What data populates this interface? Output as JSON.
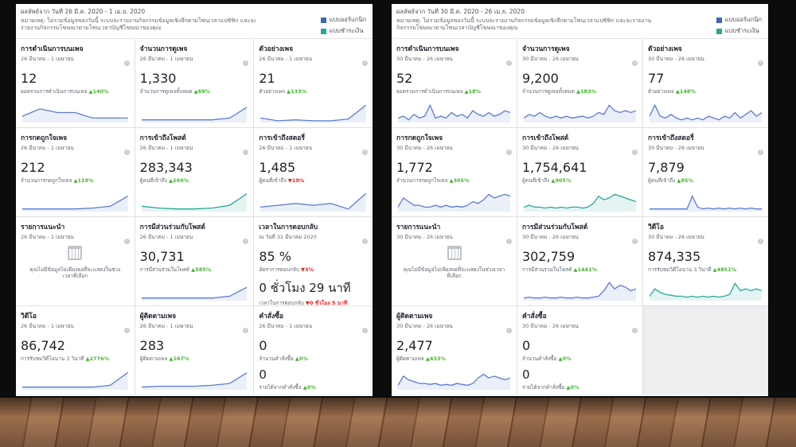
{
  "colors": {
    "organic": "#4267b2",
    "paid": "#2aa59a",
    "up": "#42b72a",
    "down": "#e02424",
    "line_blue": "#5b7bd5",
    "line_teal": "#2aa59a"
  },
  "legend": {
    "organic": "แบบออร์แกนิก",
    "paid": "แบบชำระเงิน"
  },
  "left": {
    "date_range": "ผลลัพธ์จาก วันที่ 26 มี.ค. 2020 - 1 เม.ย. 2020",
    "note": "หมายเหตุ: ไม่รวมข้อมูลของวันนี้ ระบบจะรายงานกิจกรรมข้อมูลเชิงลึกตามโซนเวลาแปซิฟิก และจะรายงานกิจกรรมโฆษณาตามโซนเวลาบัญชีโฆษณาของคุณ",
    "cards": [
      {
        "title": "การดำเนินการบนเพจ",
        "sub": "26 มีนาคม - 1 เมษายน",
        "value": "12",
        "meta": "ยอดรวมการดำเนินการบนเพจ",
        "change": "140%",
        "dir": "up",
        "line": "blue",
        "points": [
          0.3,
          0.7,
          0.5,
          0.5,
          0.2,
          0.2,
          0.2
        ]
      },
      {
        "title": "จำนวนการดูเพจ",
        "sub": "26 มีนาคม - 1 เมษายน",
        "value": "1,330",
        "meta": "จำนวนการดูเพจทั้งหมด",
        "change": "69%",
        "dir": "up",
        "line": "blue",
        "points": [
          0.1,
          0.1,
          0.1,
          0.1,
          0.1,
          0.2,
          0.8
        ]
      },
      {
        "title": "ตัวอย่างเพจ",
        "sub": "26 มีนาคม - 1 เมษายน",
        "value": "21",
        "meta": "ตัวอย่างเพจ",
        "change": "133%",
        "dir": "up",
        "line": "blue",
        "points": [
          0.2,
          0.05,
          0.1,
          0.05,
          0.05,
          0.15,
          0.9
        ]
      },
      {
        "title": "การกดถูกใจเพจ",
        "sub": "26 มีนาคม - 1 เมษายน",
        "value": "212",
        "meta": "จำนวนการกดถูกใจเพจ",
        "change": "119%",
        "dir": "up",
        "line": "blue",
        "points": [
          0.1,
          0.1,
          0.1,
          0.1,
          0.15,
          0.25,
          0.8
        ]
      },
      {
        "title": "การเข้าถึงโพสต์",
        "sub": "26 มีนาคม - 1 เมษายน",
        "value": "283,343",
        "meta": "ผู้คนที่เข้าถึง",
        "change": "269%",
        "dir": "up",
        "line": "teal",
        "points": [
          0.25,
          0.15,
          0.1,
          0.1,
          0.15,
          0.3,
          0.95
        ]
      },
      {
        "title": "การเข้าถึงสตอรี่",
        "sub": "26 มีนาคม - 1 เมษายน",
        "value": "1,485",
        "meta": "ผู้คนที่เข้าถึง",
        "change": "19%",
        "dir": "down",
        "line": "blue",
        "points": [
          0.2,
          0.3,
          0.4,
          0.3,
          0.4,
          0.1,
          0.95
        ]
      },
      {
        "title": "รายการแนะนำ",
        "sub": "26 มีนาคม - 1 เมษายน",
        "empty": "คุณไม่มีข้อมูลไม่เพียงพอที่จะแสดงในช่วงเวลาที่เลือก"
      },
      {
        "title": "การมีส่วนร่วมกับโพสต์",
        "sub": "26 มีนาคม - 1 เมษายน",
        "value": "30,731",
        "meta": "การมีส่วนร่วมในโพสต์",
        "change": "585%",
        "dir": "up",
        "line": "blue",
        "points": [
          0.1,
          0.1,
          0.1,
          0.1,
          0.1,
          0.2,
          0.7
        ]
      },
      {
        "title": "เวลาในการตอบกลับ",
        "sub": "ณ วันที่ 31 มีนาคม 2020",
        "value": "85 %",
        "meta": "อัตราการตอบกลับ",
        "change": "3%",
        "dir": "down",
        "value2": "0 ชั่วโมง 29 นาที",
        "meta2": "เวลาในการตอบกลับ",
        "change2": "0 ชั่วโมง 5 นาที",
        "dir2": "down"
      },
      {
        "title": "วิดีโอ",
        "sub": "26 มีนาคม - 1 เมษายน",
        "value": "86,742",
        "meta": "การรับชมวิดีโอนาน 3 วินาที",
        "change": "2776%",
        "dir": "up",
        "line": "blue",
        "points": [
          0.1,
          0.1,
          0.1,
          0.1,
          0.1,
          0.2,
          0.9
        ]
      },
      {
        "title": "ผู้ติดตามเพจ",
        "sub": "26 มีนาคม - 1 เมษายน",
        "value": "283",
        "meta": "ผู้ติดตามเพจ",
        "change": "167%",
        "dir": "up",
        "line": "blue",
        "points": [
          0.1,
          0.15,
          0.15,
          0.15,
          0.2,
          0.3,
          0.9
        ]
      },
      {
        "title": "คำสั่งซื้อ",
        "sub": "26 มีนาคม - 1 เมษายน",
        "value": "0",
        "meta": "จำนวนคำสั่งซื้อ",
        "change": "0%",
        "dir": "up",
        "value2": "0",
        "meta2": "รายได้จากคำสั่งซื้อ",
        "change2": "0%",
        "dir2": "up"
      }
    ]
  },
  "right": {
    "date_range": "ผลลัพธ์จาก วันที่ 30 มี.ค. 2020 - 26 เม.ย. 2020",
    "note": "หมายเหตุ: ไม่รวมข้อมูลของวันนี้ ระบบจะรายงานกิจกรรมข้อมูลเชิงลึกตามโซนเวลาแปซิฟิก และจะรายงานกิจกรรมโฆษณาตามโซนเวลาบัญชีโฆษณาของคุณ",
    "cards": [
      {
        "title": "การดำเนินการบนเพจ",
        "sub": "30 มีนาคม - 26 เมษายน",
        "value": "52",
        "meta": "ยอดรวมการดำเนินการบนเพจ",
        "change": "18%",
        "dir": "up",
        "line": "blue",
        "points": [
          0.2,
          0.3,
          0.1,
          0.4,
          0.2,
          0.3,
          0.9,
          0.2,
          0.3,
          0.2,
          0.5,
          0.3,
          0.4,
          0.2,
          0.6,
          0.4,
          0.3,
          0.5,
          0.3,
          0.4,
          0.6,
          0.5
        ]
      },
      {
        "title": "จำนวนการดูเพจ",
        "sub": "30 มีนาคม - 26 เมษายน",
        "value": "9,200",
        "meta": "จำนวนการดูเพจทั้งหมด",
        "change": "183%",
        "dir": "up",
        "line": "blue",
        "points": [
          0.2,
          0.4,
          0.3,
          0.5,
          0.3,
          0.2,
          0.3,
          0.2,
          0.3,
          0.2,
          0.25,
          0.3,
          0.2,
          0.3,
          0.5,
          0.4,
          0.9,
          0.6,
          0.5,
          0.6,
          0.5,
          0.6
        ]
      },
      {
        "title": "ตัวอย่างเพจ",
        "sub": "30 มีนาคม - 26 เมษายน",
        "value": "77",
        "meta": "ตัวอย่างเพจ",
        "change": "148%",
        "dir": "up",
        "line": "blue",
        "points": [
          0.3,
          0.9,
          0.3,
          0.2,
          0.4,
          0.2,
          0.1,
          0.2,
          0.1,
          0.2,
          0.1,
          0.3,
          0.2,
          0.1,
          0.3,
          0.2,
          0.5,
          0.2,
          0.4,
          0.6,
          0.3,
          0.5
        ]
      },
      {
        "title": "การกดถูกใจเพจ",
        "sub": "30 มีนาคม - 26 เมษายน",
        "value": "1,772",
        "meta": "จำนวนการกดถูกใจเพจ",
        "change": "305%",
        "dir": "up",
        "line": "blue",
        "points": [
          0.2,
          0.7,
          0.5,
          0.3,
          0.3,
          0.2,
          0.2,
          0.3,
          0.2,
          0.3,
          0.2,
          0.25,
          0.2,
          0.3,
          0.5,
          0.4,
          0.6,
          0.9,
          0.7,
          0.8,
          0.9,
          0.8
        ]
      },
      {
        "title": "การเข้าถึงโพสต์",
        "sub": "30 มีนาคม - 26 เมษายน",
        "value": "1,754,641",
        "meta": "ผู้คนที่เข้าถึง",
        "change": "905%",
        "dir": "up",
        "line": "teal",
        "points": [
          0.2,
          0.3,
          0.2,
          0.2,
          0.15,
          0.2,
          0.15,
          0.2,
          0.15,
          0.2,
          0.2,
          0.15,
          0.2,
          0.4,
          0.8,
          0.6,
          0.7,
          0.9,
          0.8,
          0.7,
          0.6,
          0.5
        ]
      },
      {
        "title": "การเข้าถึงสตอรี่",
        "sub": "30 มีนาคม - 26 เมษายน",
        "value": "7,879",
        "meta": "ผู้คนที่เข้าถึง",
        "change": "85%",
        "dir": "up",
        "line": "blue",
        "points": [
          0.1,
          0.1,
          0.1,
          0.1,
          0.1,
          0.1,
          0.1,
          0.1,
          0.8,
          0.2,
          0.1,
          0.15,
          0.1,
          0.15,
          0.1,
          0.15,
          0.1,
          0.15,
          0.1,
          0.15,
          0.1,
          0.1
        ]
      },
      {
        "title": "รายการแนะนำ",
        "sub": "30 มีนาคม - 26 เมษายน",
        "empty": "คุณไม่มีข้อมูลไม่เพียงพอที่จะแสดงในช่วงเวลาที่เลือก"
      },
      {
        "title": "การมีส่วนร่วมกับโพสต์",
        "sub": "30 มีนาคม - 26 เมษายน",
        "value": "302,759",
        "meta": "การมีส่วนร่วมในโพสต์",
        "change": "1441%",
        "dir": "up",
        "line": "blue",
        "points": [
          0.1,
          0.15,
          0.1,
          0.1,
          0.15,
          0.1,
          0.1,
          0.15,
          0.1,
          0.1,
          0.15,
          0.1,
          0.1,
          0.15,
          0.2,
          0.5,
          0.95,
          0.6,
          0.8,
          0.7,
          0.5,
          0.6
        ]
      },
      {
        "title": "วิดีโอ",
        "sub": "30 มีนาคม - 26 เมษายน",
        "value": "874,335",
        "meta": "การรับชมวิดีโอนาน 3 วินาที",
        "change": "4851%",
        "dir": "up",
        "line": "teal",
        "points": [
          0.2,
          0.6,
          0.4,
          0.3,
          0.25,
          0.2,
          0.2,
          0.15,
          0.2,
          0.15,
          0.2,
          0.15,
          0.2,
          0.15,
          0.2,
          0.3,
          0.9,
          0.5,
          0.6,
          0.5,
          0.6,
          0.5
        ]
      },
      {
        "title": "ผู้ติดตามเพจ",
        "sub": "30 มีนาคม - 26 เมษายน",
        "value": "2,477",
        "meta": "ผู้ติดตามเพจ",
        "change": "433%",
        "dir": "up",
        "line": "blue",
        "points": [
          0.2,
          0.7,
          0.5,
          0.4,
          0.3,
          0.3,
          0.25,
          0.3,
          0.2,
          0.25,
          0.2,
          0.3,
          0.25,
          0.2,
          0.3,
          0.6,
          0.8,
          0.6,
          0.7,
          0.6,
          0.5,
          0.6
        ]
      },
      {
        "title": "คำสั่งซื้อ",
        "sub": "30 มีนาคม - 26 เมษายน",
        "value": "0",
        "meta": "จำนวนคำสั่งซื้อ",
        "change": "0%",
        "dir": "up",
        "value2": "0",
        "meta2": "รายได้จากคำสั่งซื้อ",
        "change2": "0%",
        "dir2": "up"
      },
      {
        "empty_cell": true
      }
    ]
  }
}
